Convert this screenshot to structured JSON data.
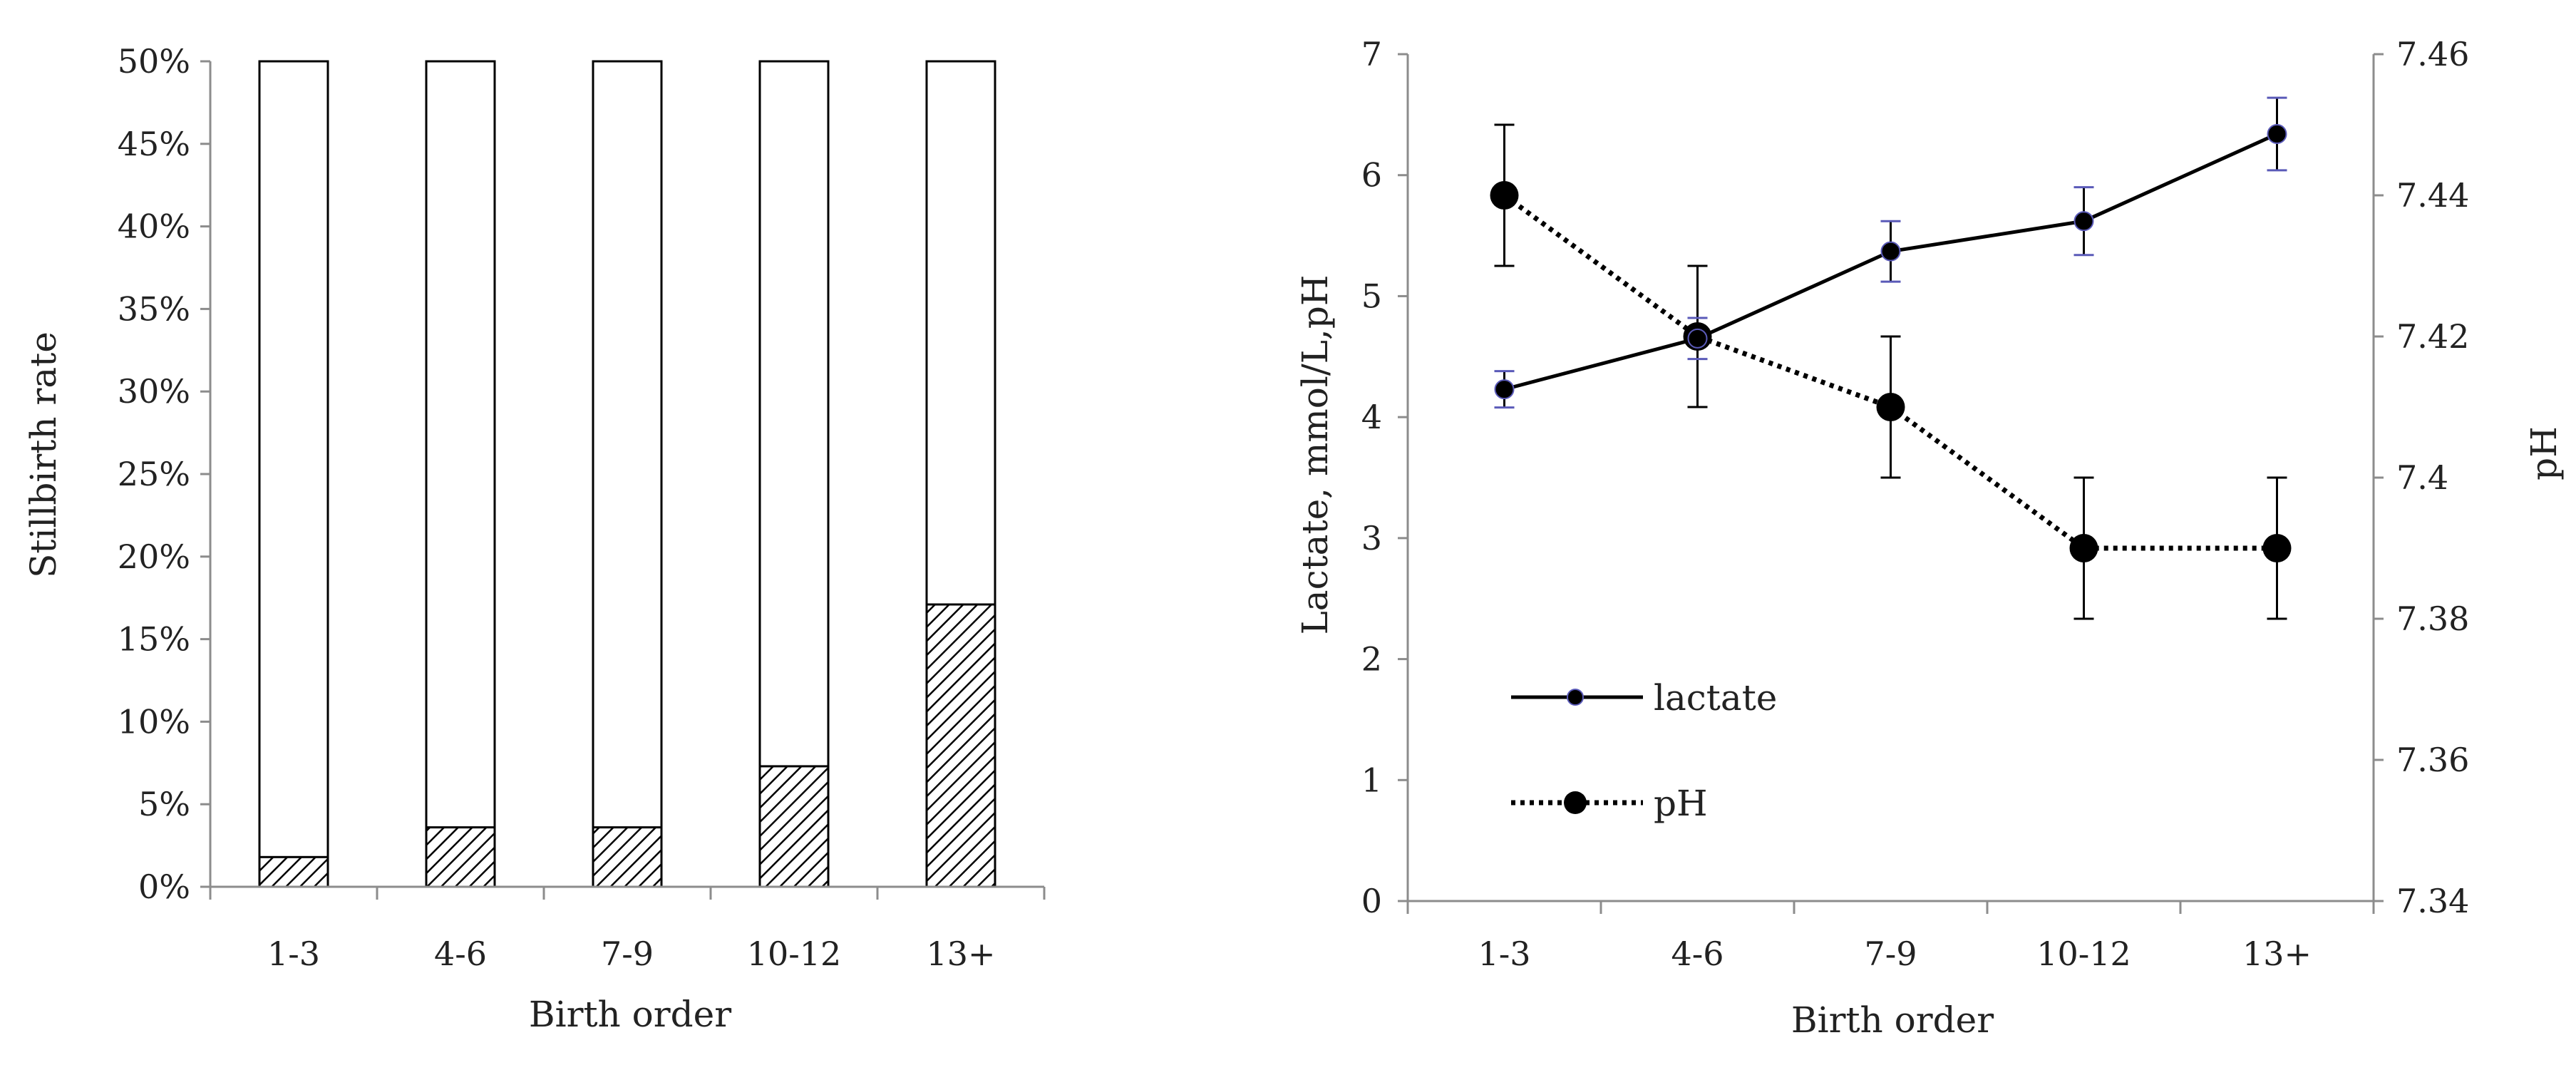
{
  "colors": {
    "axis": "#8c8c8c",
    "frame": "#000000",
    "line": "#000000",
    "lactate_error": "#5a5ab8",
    "ph_error": "#000000",
    "hatch": "#000000"
  },
  "chart_data": [
    {
      "type": "bar",
      "categories": [
        "1-3",
        "4-6",
        "7-9",
        "10-12",
        "13+"
      ],
      "values": [
        1.8,
        3.6,
        3.6,
        7.3,
        17.1
      ],
      "value_unit": "%",
      "xlabel": "Birth order",
      "ylabel": "Stillbirth rate",
      "ylim": [
        0,
        50
      ],
      "y_ticks": [
        "0%",
        "5%",
        "10%",
        "15%",
        "20%",
        "25%",
        "30%",
        "35%",
        "40%",
        "45%",
        "50%"
      ],
      "bar_fill": "hatched",
      "bar_outline_to_top": true,
      "grid": false
    },
    {
      "type": "line",
      "categories": [
        "1-3",
        "4-6",
        "7-9",
        "10-12",
        "13+"
      ],
      "xlabel": "Birth order",
      "ylabel": "Lactate, mmol/L,pH",
      "ylabel_right": "pH",
      "ylim": [
        0,
        7
      ],
      "ylim_right": [
        7.34,
        7.46
      ],
      "y_ticks": [
        "0",
        "1",
        "2",
        "3",
        "4",
        "5",
        "6",
        "7"
      ],
      "y_ticks_right": [
        "7.34",
        "7.36",
        "7.38",
        "7.4",
        "7.42",
        "7.44",
        "7.46"
      ],
      "grid": false,
      "legend_position": "lower-left",
      "series": [
        {
          "name": "lactate",
          "axis": "left",
          "style": "solid",
          "values": [
            4.23,
            4.65,
            5.37,
            5.62,
            6.34
          ],
          "error": [
            0.15,
            0.17,
            0.25,
            0.28,
            0.3
          ]
        },
        {
          "name": "pH",
          "axis": "right",
          "style": "dotted",
          "values": [
            7.44,
            7.42,
            7.41,
            7.39,
            7.39
          ],
          "error": [
            0.01,
            0.01,
            0.01,
            0.01,
            0.01
          ]
        }
      ]
    }
  ]
}
